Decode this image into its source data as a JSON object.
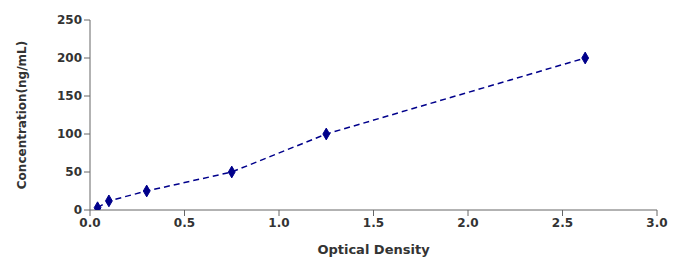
{
  "chart_data": {
    "type": "line",
    "x": [
      0.04,
      0.1,
      0.3,
      0.75,
      1.25,
      2.62
    ],
    "values": [
      3,
      12,
      25,
      50,
      100,
      200
    ],
    "color": "#00008B",
    "marker": "diamond",
    "line_style": "dashed",
    "xlabel": "Optical Density",
    "ylabel": "Concentration(ng/mL)",
    "xlim": [
      0,
      3
    ],
    "ylim": [
      0,
      250
    ],
    "xticks": [
      {
        "value": 0,
        "label": "0.0"
      },
      0.5,
      {
        "value": 1,
        "label": "1.0"
      },
      1.5,
      {
        "value": 2,
        "label": "2.0"
      },
      2.5,
      {
        "value": 3,
        "label": "3.0"
      }
    ],
    "yticks": [
      0,
      50,
      100,
      150,
      200,
      250
    ],
    "grid": false
  }
}
